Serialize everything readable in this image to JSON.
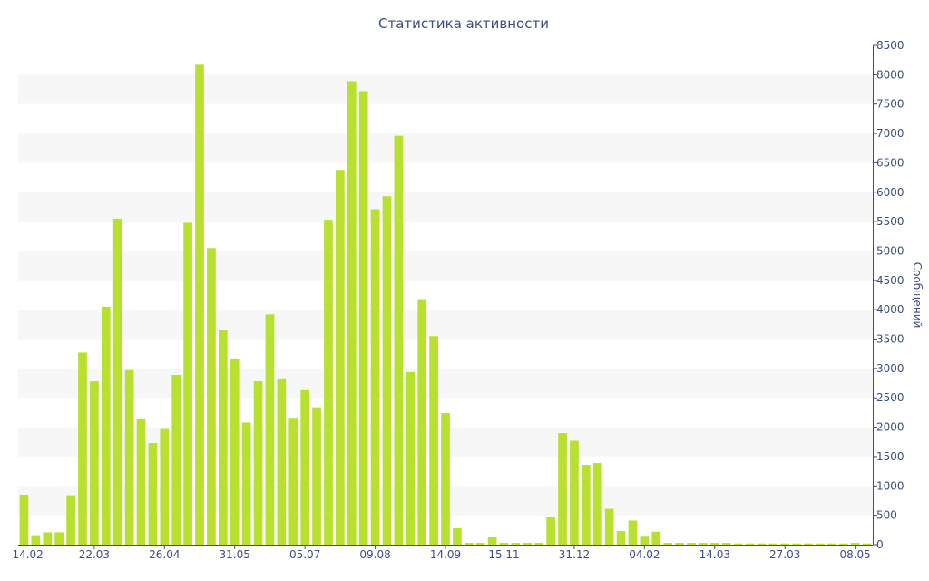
{
  "chart_data": {
    "type": "bar",
    "title": "Статистика активности",
    "ylabel": "Сообщений",
    "ylim": [
      0,
      8500
    ],
    "yticks": [
      0,
      500,
      1000,
      1500,
      2000,
      2500,
      3000,
      3500,
      4000,
      4500,
      5000,
      5500,
      6000,
      6500,
      7000,
      7500,
      8000,
      8500
    ],
    "xtick_labels": [
      "14.02",
      "22.03",
      "26.04",
      "31.05",
      "05.07",
      "09.08",
      "14.09",
      "15.11",
      "31.12",
      "04.02",
      "14.03",
      "27.03",
      "08.05"
    ],
    "xtick_positions": [
      0,
      6,
      12,
      18,
      24,
      30,
      36,
      41,
      47,
      53,
      59,
      65,
      71
    ],
    "grid": "alternating horizontal bands",
    "bar_color": "#b7e02f",
    "band_color": "#f7f7f7",
    "axis_color": "#3d4d80",
    "values": [
      850,
      160,
      210,
      210,
      840,
      3270,
      2780,
      4050,
      5550,
      2970,
      2150,
      1730,
      1970,
      2890,
      5480,
      8170,
      5050,
      3650,
      3170,
      2080,
      2780,
      3920,
      2830,
      2160,
      2630,
      2340,
      5530,
      6380,
      7890,
      7720,
      5710,
      5930,
      6960,
      2940,
      4180,
      3550,
      2240,
      280,
      30,
      30,
      130,
      30,
      30,
      30,
      30,
      470,
      1900,
      1770,
      1360,
      1390,
      610,
      230,
      410,
      150,
      220,
      30,
      30,
      30,
      30,
      30,
      30,
      20,
      20,
      20,
      20,
      20,
      20,
      20,
      20,
      20,
      20,
      30,
      20
    ]
  }
}
